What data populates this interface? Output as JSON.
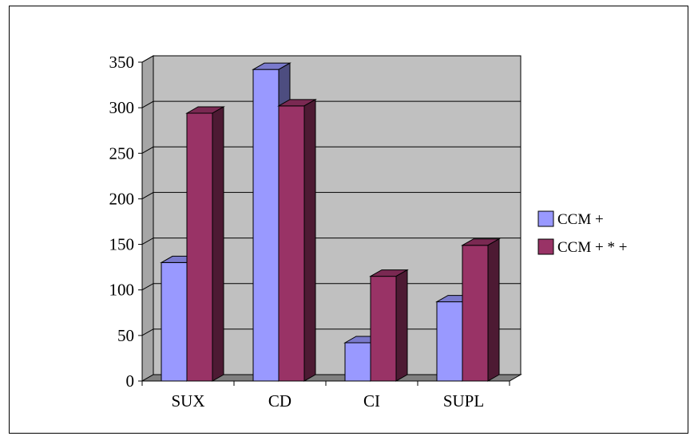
{
  "chart_data": {
    "type": "bar",
    "title": "",
    "xlabel": "",
    "ylabel": "",
    "categories": [
      "SUX",
      "CD",
      "CI",
      "SUPL"
    ],
    "series": [
      {
        "name": "CCM +",
        "values": [
          130,
          342,
          42,
          87
        ],
        "color": "#9999ff"
      },
      {
        "name": "CCM + * +",
        "values": [
          294,
          302,
          115,
          149
        ],
        "color": "#993366"
      }
    ],
    "ylim": [
      0,
      350
    ],
    "yticks": [
      "0",
      "50",
      "100",
      "150",
      "200",
      "250",
      "300",
      "350"
    ],
    "grid": true,
    "legend": "right",
    "plot_background": "#c0c0c0",
    "style": "3d-clustered-column"
  }
}
